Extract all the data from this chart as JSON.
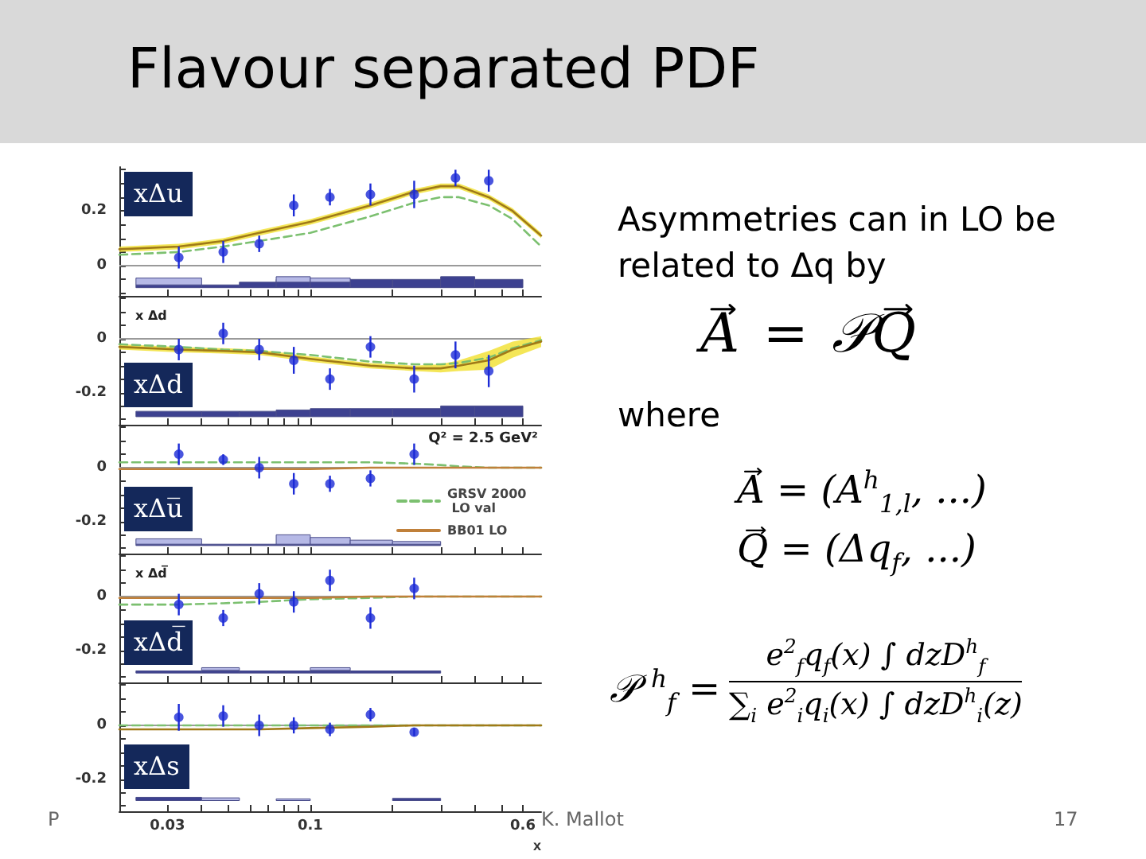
{
  "chart_data": [
    {
      "type": "other",
      "title": "Flavour separated PDF",
      "annotations": [
        "Asymmetries can in LO be related to Δq by",
        "A = 𝒫Q",
        "where",
        "A = (A$^{h}$$_{1,l}$, ...)",
        "Q = (Δq$_{f}$, ...)",
        "𝒫$^{h}$$_{f}$ =",
        "e$^{2}$$_{f}$q$_{f}$(x) ∫ dzD$^{h}$$_{f}$",
        "∑$_{i}$ e$^{2}$$_{i}$q$_{i}$(x) ∫ dzD$^{h}$$_{i}$(z)",
        "P",
        "K. Mallot",
        "17"
      ]
    },
    {
      "type": "scatter",
      "marker": "circle",
      "log": "x",
      "xlim": [
        0.02,
        0.7
      ],
      "ylim": [
        -0.11,
        0.36
      ],
      "tick_labels": "y",
      "grid": false,
      "xticks": [
        0.03,
        {
          "value": 0.04,
          "label": null
        },
        {
          "value": 0.05,
          "label": null
        },
        {
          "value": 0.06,
          "label": null
        },
        {
          "value": 0.07,
          "label": null
        },
        {
          "value": 0.08,
          "label": null
        },
        {
          "value": 0.09,
          "label": null
        },
        0.1,
        {
          "value": 0.2,
          "label": null
        },
        {
          "value": 0.3,
          "label": null
        },
        {
          "value": 0.4,
          "label": null
        },
        {
          "value": 0.5,
          "label": null
        },
        0.6
      ],
      "yticks": [
        {
          "value": -0.1,
          "label": null
        },
        {
          "value": -0.05,
          "label": null
        },
        0,
        {
          "value": 0.05,
          "label": null
        },
        {
          "value": 0.1,
          "label": null
        },
        {
          "value": 0.15,
          "label": null
        },
        0.2,
        {
          "value": 0.25,
          "label": null
        },
        {
          "value": 0.3,
          "label": null
        },
        {
          "value": 0.35,
          "label": null
        }
      ],
      "annotations": [
        "xΔu"
      ],
      "ref_lines": [
        {
          "axis": "y",
          "value": 0,
          "color": "#9a9a9a"
        }
      ],
      "series": [
        {
          "type": "histogram",
          "bins": [
            0.023,
            0.04,
            0.055,
            0.075,
            0.1,
            0.14,
            0.2,
            0.3,
            0.4,
            0.6
          ],
          "base": [
            -0.08,
            -0.08,
            -0.08,
            -0.08,
            -0.08,
            -0.08,
            -0.08,
            -0.08,
            -0.08
          ],
          "values": [
            0.01,
            0.01,
            0.02,
            0.03,
            0.03,
            0.03,
            0.03,
            0.04,
            0.03
          ],
          "color": "#3d4190"
        },
        {
          "type": "histogram",
          "bins": [
            0.023,
            0.04
          ],
          "base": [
            -0.07
          ],
          "values": [
            0.025
          ],
          "color": "#b6b9e6"
        },
        {
          "type": "histogram",
          "bins": [
            0.075,
            0.1,
            0.14
          ],
          "base": [
            -0.06,
            -0.06
          ],
          "values": [
            0.02,
            0.015
          ],
          "color": "#b6b9e6"
        },
        {
          "type": "line",
          "marker": "none",
          "line_style": "dashed",
          "color": "#7cc070",
          "x": [
            0.02,
            0.033,
            0.048,
            0.065,
            0.1,
            0.166,
            0.24,
            0.3,
            0.35,
            0.45,
            0.55,
            0.7
          ],
          "values": [
            0.04,
            0.05,
            0.07,
            0.09,
            0.12,
            0.18,
            0.23,
            0.25,
            0.25,
            0.22,
            0.17,
            0.07
          ]
        },
        {
          "type": "line",
          "marker": "none",
          "line_style": "solid",
          "color": "#a07a18",
          "x": [
            0.02,
            0.033,
            0.048,
            0.065,
            0.1,
            0.166,
            0.24,
            0.3,
            0.35,
            0.45,
            0.55,
            0.7
          ],
          "values": [
            0.06,
            0.07,
            0.09,
            0.12,
            0.16,
            0.22,
            0.27,
            0.29,
            0.29,
            0.25,
            0.2,
            0.11
          ],
          "lower": [
            0.05,
            0.06,
            0.08,
            0.11,
            0.15,
            0.21,
            0.26,
            0.28,
            0.28,
            0.24,
            0.19,
            0.1
          ],
          "upper": [
            0.07,
            0.08,
            0.1,
            0.13,
            0.17,
            0.23,
            0.28,
            0.3,
            0.3,
            0.26,
            0.21,
            0.12
          ]
        },
        {
          "type": "scatter",
          "color": "#1c2bd6",
          "x": [
            0.033,
            0.048,
            0.065,
            0.087,
            0.118,
            0.166,
            0.24,
            0.34,
            0.45
          ],
          "values": [
            0.03,
            0.05,
            0.08,
            0.22,
            0.25,
            0.26,
            0.26,
            0.32,
            0.31
          ],
          "errors": [
            0.04,
            0.04,
            0.03,
            0.04,
            0.03,
            0.04,
            0.05,
            0.03,
            0.04
          ]
        }
      ]
    },
    {
      "type": "scatter",
      "marker": "circle",
      "log": "x",
      "xlim": [
        0.02,
        0.7
      ],
      "ylim": [
        -0.32,
        0.16
      ],
      "tick_labels": "y",
      "grid": false,
      "xticks": [
        0.03,
        {
          "value": 0.04,
          "label": null
        },
        {
          "value": 0.05,
          "label": null
        },
        {
          "value": 0.06,
          "label": null
        },
        {
          "value": 0.07,
          "label": null
        },
        {
          "value": 0.08,
          "label": null
        },
        {
          "value": 0.09,
          "label": null
        },
        0.1,
        {
          "value": 0.2,
          "label": null
        },
        {
          "value": 0.3,
          "label": null
        },
        {
          "value": 0.4,
          "label": null
        },
        {
          "value": 0.5,
          "label": null
        },
        0.6
      ],
      "yticks": [
        {
          "value": -0.3,
          "label": null
        },
        {
          "value": -0.25,
          "label": null
        },
        -0.2,
        {
          "value": -0.15,
          "label": null
        },
        {
          "value": -0.1,
          "label": null
        },
        {
          "value": -0.05,
          "label": null
        },
        0,
        {
          "value": 0.05,
          "label": null
        },
        {
          "value": 0.1,
          "label": null
        },
        {
          "value": 0.15,
          "label": null
        }
      ],
      "annotations": [
        "xΔd",
        "x Δd"
      ],
      "ref_lines": [
        {
          "axis": "y",
          "value": 0,
          "color": "#9a9a9a"
        }
      ],
      "series": [
        {
          "type": "histogram",
          "bins": [
            0.023,
            0.04,
            0.055,
            0.075,
            0.1,
            0.14,
            0.2,
            0.3,
            0.4,
            0.6
          ],
          "base": [
            -0.29,
            -0.29,
            -0.29,
            -0.29,
            -0.29,
            -0.29,
            -0.29,
            -0.29,
            -0.29
          ],
          "values": [
            0.02,
            0.02,
            0.02,
            0.025,
            0.03,
            0.03,
            0.03,
            0.04,
            0.04
          ],
          "color": "#3d4190"
        },
        {
          "type": "line",
          "marker": "none",
          "line_style": "dashed",
          "color": "#7cc070",
          "x": [
            0.02,
            0.033,
            0.048,
            0.065,
            0.1,
            0.166,
            0.24,
            0.3,
            0.35,
            0.45,
            0.55,
            0.7
          ],
          "values": [
            -0.02,
            -0.03,
            -0.04,
            -0.045,
            -0.06,
            -0.085,
            -0.095,
            -0.095,
            -0.09,
            -0.07,
            -0.035,
            -0.005
          ]
        },
        {
          "type": "line",
          "marker": "none",
          "line_style": "solid",
          "color": "#a07a18",
          "x": [
            0.02,
            0.033,
            0.048,
            0.065,
            0.1,
            0.166,
            0.24,
            0.3,
            0.35,
            0.45,
            0.55,
            0.7
          ],
          "values": [
            -0.03,
            -0.04,
            -0.045,
            -0.05,
            -0.075,
            -0.1,
            -0.11,
            -0.11,
            -0.1,
            -0.08,
            -0.04,
            -0.01
          ],
          "lower": [
            -0.04,
            -0.05,
            -0.055,
            -0.06,
            -0.085,
            -0.11,
            -0.12,
            -0.125,
            -0.12,
            -0.115,
            -0.07,
            -0.03
          ],
          "upper": [
            -0.02,
            -0.03,
            -0.035,
            -0.04,
            -0.065,
            -0.09,
            -0.1,
            -0.095,
            -0.08,
            -0.045,
            -0.01,
            0.01
          ]
        },
        {
          "type": "scatter",
          "color": "#1c2bd6",
          "x": [
            0.033,
            0.048,
            0.065,
            0.087,
            0.118,
            0.166,
            0.24,
            0.34,
            0.45
          ],
          "values": [
            -0.04,
            0.02,
            -0.04,
            -0.08,
            -0.15,
            -0.03,
            -0.15,
            -0.06,
            -0.12
          ],
          "errors": [
            0.04,
            0.04,
            0.04,
            0.05,
            0.04,
            0.04,
            0.05,
            0.05,
            0.06
          ]
        }
      ]
    },
    {
      "type": "scatter",
      "marker": "circle",
      "log": "x",
      "xlim": [
        0.02,
        0.7
      ],
      "ylim": [
        -0.32,
        0.16
      ],
      "tick_labels": "y",
      "grid": false,
      "legend": "right",
      "xticks": [
        0.03,
        {
          "value": 0.04,
          "label": null
        },
        {
          "value": 0.05,
          "label": null
        },
        {
          "value": 0.06,
          "label": null
        },
        {
          "value": 0.07,
          "label": null
        },
        {
          "value": 0.08,
          "label": null
        },
        {
          "value": 0.09,
          "label": null
        },
        0.1,
        {
          "value": 0.2,
          "label": null
        },
        {
          "value": 0.3,
          "label": null
        },
        {
          "value": 0.4,
          "label": null
        },
        {
          "value": 0.5,
          "label": null
        },
        0.6
      ],
      "yticks": [
        {
          "value": -0.3,
          "label": null
        },
        {
          "value": -0.25,
          "label": null
        },
        -0.2,
        {
          "value": -0.15,
          "label": null
        },
        {
          "value": -0.1,
          "label": null
        },
        {
          "value": -0.05,
          "label": null
        },
        0,
        {
          "value": 0.05,
          "label": null
        },
        {
          "value": 0.1,
          "label": null
        },
        {
          "value": 0.15,
          "label": null
        }
      ],
      "annotations": [
        "xΔu̅",
        "Q² = 2.5 GeV²"
      ],
      "ref_lines": [
        {
          "axis": "y",
          "value": 0,
          "color": "#9a9a9a"
        }
      ],
      "series": [
        {
          "type": "histogram",
          "bins": [
            0.023,
            0.04,
            0.055,
            0.075,
            0.1,
            0.14,
            0.2,
            0.3
          ],
          "base": [
            -0.29,
            -0.29,
            -0.29,
            -0.29,
            -0.29,
            -0.29,
            -0.29
          ],
          "values": [
            0.005,
            0.005,
            0.005,
            0.005,
            0.005,
            0.005,
            0.005
          ],
          "color": "#3d4190"
        },
        {
          "type": "histogram",
          "bins": [
            0.023,
            0.04
          ],
          "base": [
            -0.285
          ],
          "values": [
            0.02
          ],
          "color": "#b6b9e6"
        },
        {
          "type": "histogram",
          "bins": [
            0.075,
            0.1,
            0.14,
            0.2,
            0.3
          ],
          "base": [
            -0.285,
            -0.285,
            -0.285,
            -0.285
          ],
          "values": [
            0.035,
            0.025,
            0.015,
            0.01
          ],
          "color": "#b6b9e6"
        },
        {
          "type": "line",
          "name": "GRSV 2000 LO val",
          "marker": "none",
          "line_style": "dashed",
          "color": "#7cc070",
          "x": [
            0.02,
            0.033,
            0.048,
            0.065,
            0.1,
            0.166,
            0.24,
            0.3,
            0.35,
            0.45,
            0.55,
            0.7
          ],
          "values": [
            0.02,
            0.02,
            0.02,
            0.02,
            0.02,
            0.02,
            0.015,
            0.01,
            0.005,
            0,
            0,
            0
          ]
        },
        {
          "type": "line",
          "name": "BB01 LO",
          "marker": "none",
          "line_style": "solid",
          "color": "#c0803a",
          "x": [
            0.02,
            0.033,
            0.048,
            0.065,
            0.1,
            0.166,
            0.24,
            0.3,
            0.35,
            0.45,
            0.55,
            0.7
          ],
          "values": [
            -0.005,
            -0.005,
            -0.005,
            -0.005,
            -0.005,
            0,
            0,
            0,
            0,
            0,
            0,
            0
          ]
        },
        {
          "type": "scatter",
          "color": "#1c2bd6",
          "x": [
            0.033,
            0.048,
            0.065,
            0.087,
            0.118,
            0.166,
            0.24
          ],
          "values": [
            0.05,
            0.03,
            0,
            -0.06,
            -0.06,
            -0.04,
            0.05
          ],
          "errors": [
            0.04,
            0.02,
            0.04,
            0.04,
            0.03,
            0.03,
            0.04
          ]
        }
      ]
    },
    {
      "type": "scatter",
      "marker": "circle",
      "log": "x",
      "xlim": [
        0.02,
        0.7
      ],
      "ylim": [
        -0.32,
        0.16
      ],
      "tick_labels": "y",
      "grid": false,
      "xticks": [
        0.03,
        {
          "value": 0.04,
          "label": null
        },
        {
          "value": 0.05,
          "label": null
        },
        {
          "value": 0.06,
          "label": null
        },
        {
          "value": 0.07,
          "label": null
        },
        {
          "value": 0.08,
          "label": null
        },
        {
          "value": 0.09,
          "label": null
        },
        0.1,
        {
          "value": 0.2,
          "label": null
        },
        {
          "value": 0.3,
          "label": null
        },
        {
          "value": 0.4,
          "label": null
        },
        {
          "value": 0.5,
          "label": null
        },
        0.6
      ],
      "yticks": [
        {
          "value": -0.3,
          "label": null
        },
        {
          "value": -0.25,
          "label": null
        },
        -0.2,
        {
          "value": -0.15,
          "label": null
        },
        {
          "value": -0.1,
          "label": null
        },
        {
          "value": -0.05,
          "label": null
        },
        0,
        {
          "value": 0.05,
          "label": null
        },
        {
          "value": 0.1,
          "label": null
        },
        {
          "value": 0.15,
          "label": null
        }
      ],
      "annotations": [
        "xΔd̅",
        "x Δd̅"
      ],
      "ref_lines": [
        {
          "axis": "y",
          "value": 0,
          "color": "#9a9a9a"
        }
      ],
      "series": [
        {
          "type": "histogram",
          "bins": [
            0.023,
            0.04,
            0.055,
            0.075,
            0.1,
            0.14,
            0.2,
            0.3
          ],
          "base": [
            -0.285,
            -0.285,
            -0.285,
            -0.285,
            -0.285,
            -0.285,
            -0.285
          ],
          "values": [
            0.008,
            0.008,
            0.008,
            0.008,
            0.008,
            0.008,
            0.008
          ],
          "color": "#3d4190"
        },
        {
          "type": "histogram",
          "bins": [
            0.04,
            0.055
          ],
          "base": [
            -0.275
          ],
          "values": [
            0.01
          ],
          "color": "#b6b9e6"
        },
        {
          "type": "histogram",
          "bins": [
            0.1,
            0.14
          ],
          "base": [
            -0.275
          ],
          "values": [
            0.01
          ],
          "color": "#b6b9e6"
        },
        {
          "type": "line",
          "marker": "none",
          "line_style": "dashed",
          "color": "#7cc070",
          "x": [
            0.02,
            0.033,
            0.048,
            0.065,
            0.1,
            0.166,
            0.24,
            0.3,
            0.35,
            0.45,
            0.55,
            0.7
          ],
          "values": [
            -0.03,
            -0.03,
            -0.025,
            -0.02,
            -0.01,
            -0.005,
            0,
            0,
            0,
            0,
            0,
            0
          ]
        },
        {
          "type": "line",
          "marker": "none",
          "line_style": "solid",
          "color": "#c0803a",
          "x": [
            0.02,
            0.033,
            0.048,
            0.065,
            0.1,
            0.166,
            0.24,
            0.3,
            0.35,
            0.45,
            0.55,
            0.7
          ],
          "values": [
            -0.005,
            -0.005,
            -0.005,
            -0.005,
            -0.005,
            0,
            0,
            0,
            0,
            0,
            0,
            0
          ]
        },
        {
          "type": "scatter",
          "color": "#1c2bd6",
          "x": [
            0.033,
            0.048,
            0.065,
            0.087,
            0.118,
            0.166,
            0.24
          ],
          "values": [
            -0.03,
            -0.08,
            0.01,
            -0.02,
            0.06,
            -0.08,
            0.03
          ],
          "errors": [
            0.04,
            0.03,
            0.04,
            0.04,
            0.04,
            0.04,
            0.04
          ]
        }
      ]
    },
    {
      "type": "scatter",
      "marker": "circle",
      "log": "x",
      "xlim": [
        0.02,
        0.7
      ],
      "ylim": [
        -0.32,
        0.16
      ],
      "grid": false,
      "xlabel": "x",
      "xticks": [
        0.03,
        {
          "value": 0.04,
          "label": null
        },
        {
          "value": 0.05,
          "label": null
        },
        {
          "value": 0.06,
          "label": null
        },
        {
          "value": 0.07,
          "label": null
        },
        {
          "value": 0.08,
          "label": null
        },
        {
          "value": 0.09,
          "label": null
        },
        0.1,
        {
          "value": 0.2,
          "label": null
        },
        {
          "value": 0.3,
          "label": null
        },
        {
          "value": 0.4,
          "label": null
        },
        {
          "value": 0.5,
          "label": null
        },
        0.6
      ],
      "yticks": [
        {
          "value": -0.3,
          "label": null
        },
        {
          "value": -0.25,
          "label": null
        },
        -0.2,
        {
          "value": -0.15,
          "label": null
        },
        {
          "value": -0.1,
          "label": null
        },
        {
          "value": -0.05,
          "label": null
        },
        0,
        {
          "value": 0.05,
          "label": null
        },
        {
          "value": 0.1,
          "label": null
        },
        {
          "value": 0.15,
          "label": null
        }
      ],
      "annotations": [
        "xΔs"
      ],
      "ref_lines": [
        {
          "axis": "y",
          "value": 0,
          "color": "#9a9a9a"
        }
      ],
      "series": [
        {
          "type": "histogram",
          "bins": [
            0.023,
            0.04
          ],
          "base": [
            -0.28
          ],
          "values": [
            0.012
          ],
          "color": "#3d4190"
        },
        {
          "type": "histogram",
          "bins": [
            0.2,
            0.3
          ],
          "base": [
            -0.28
          ],
          "values": [
            0.008
          ],
          "color": "#3d4190"
        },
        {
          "type": "histogram",
          "bins": [
            0.04,
            0.055
          ],
          "base": [
            -0.28
          ],
          "values": [
            0.01
          ],
          "color": "#b6b9e6"
        },
        {
          "type": "histogram",
          "bins": [
            0.075,
            0.1
          ],
          "base": [
            -0.28
          ],
          "values": [
            0.006
          ],
          "color": "#b6b9e6"
        },
        {
          "type": "line",
          "marker": "none",
          "line_style": "dashed",
          "color": "#7cc070",
          "x": [
            0.02,
            0.033,
            0.048,
            0.065,
            0.1,
            0.166,
            0.24,
            0.3,
            0.35,
            0.45,
            0.55,
            0.7
          ],
          "values": [
            0,
            0,
            0,
            0,
            0,
            0,
            0,
            0,
            0,
            0,
            0,
            0
          ]
        },
        {
          "type": "line",
          "marker": "none",
          "line_style": "solid",
          "color": "#a07a18",
          "x": [
            0.02,
            0.033,
            0.048,
            0.065,
            0.1,
            0.166,
            0.24,
            0.3,
            0.35,
            0.45,
            0.55,
            0.7
          ],
          "values": [
            -0.015,
            -0.015,
            -0.015,
            -0.015,
            -0.01,
            -0.005,
            0,
            0,
            0,
            0,
            0,
            0
          ]
        },
        {
          "type": "scatter",
          "color": "#1c2bd6",
          "x": [
            0.033,
            0.048,
            0.065,
            0.087,
            0.118,
            0.166,
            0.24
          ],
          "values": [
            0.03,
            0.035,
            0,
            0,
            -0.015,
            0.04,
            -0.025
          ],
          "errors": [
            0.05,
            0.04,
            0.04,
            0.03,
            0.025,
            0.025,
            0.015
          ]
        }
      ]
    }
  ]
}
